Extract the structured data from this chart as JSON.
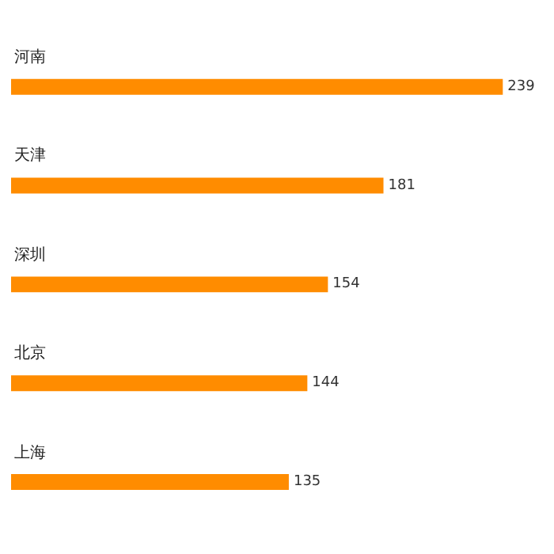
{
  "chart_data": {
    "type": "bar",
    "orientation": "horizontal",
    "categories": [
      "河南",
      "天津",
      "深圳",
      "北京",
      "上海"
    ],
    "values": [
      239,
      181,
      154,
      144,
      135
    ],
    "color": "#ff8c00",
    "data_labels": true,
    "grid": false,
    "legend": false
  }
}
